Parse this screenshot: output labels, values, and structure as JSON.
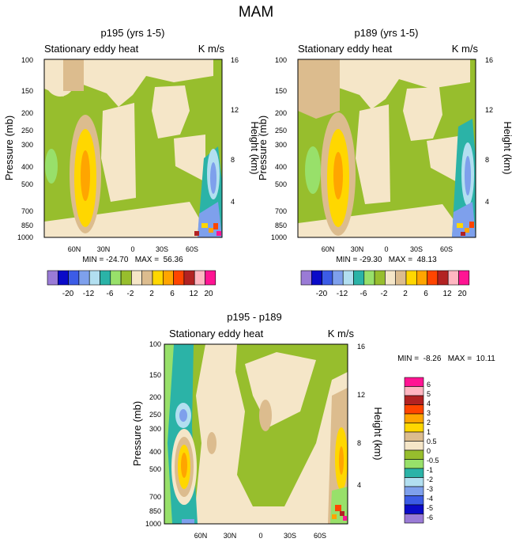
{
  "page_title": "MAM",
  "colors": {
    "levels": [
      "#9a7bd6",
      "#0a0ac8",
      "#3c5ce6",
      "#7ea0ec",
      "#b2dff0",
      "#2bb3a7",
      "#98e06a",
      "#97be2d",
      "#f5e6c8",
      "#dcbc8e",
      "#ffd700",
      "#ffa500",
      "#ff4500",
      "#b22222",
      "#ffb6c1",
      "#ff1493"
    ]
  },
  "chart_data": [
    {
      "type": "heatmap",
      "title": "p195 (yrs 1-5)",
      "left_title": "Stationary eddy heat",
      "units": "K m/s",
      "ylabel": "Pressure (mb)",
      "ylabel_right": "Height (km)",
      "y_ticks": [
        "100",
        "150",
        "200",
        "250",
        "300",
        "400",
        "500",
        "700",
        "850",
        "1000"
      ],
      "y_ticks_right": [
        "16",
        "12",
        "8",
        "4"
      ],
      "x_ticks": [
        "60N",
        "30N",
        "0",
        "30S",
        "60S"
      ],
      "stats": "MIN = -24.70   MAX =  56.36",
      "min": -24.7,
      "max": 56.36,
      "colorbar_labels": [
        "-20",
        "-12",
        "-6",
        "-2",
        "2",
        "6",
        "12",
        "20"
      ]
    },
    {
      "type": "heatmap",
      "title": "p189 (yrs 1-5)",
      "left_title": "Stationary eddy heat",
      "units": "K m/s",
      "ylabel": "Pressure (mb)",
      "ylabel_right": "Height (km)",
      "y_ticks": [
        "100",
        "150",
        "200",
        "250",
        "300",
        "400",
        "500",
        "700",
        "850",
        "1000"
      ],
      "y_ticks_right": [
        "16",
        "12",
        "8",
        "4"
      ],
      "x_ticks": [
        "60N",
        "30N",
        "0",
        "30S",
        "60S"
      ],
      "stats": "MIN = -29.30   MAX =  48.13",
      "min": -29.3,
      "max": 48.13,
      "colorbar_labels": [
        "-20",
        "-12",
        "-6",
        "-2",
        "2",
        "6",
        "12",
        "20"
      ]
    },
    {
      "type": "heatmap",
      "title": "p195 - p189",
      "left_title": "Stationary eddy heat",
      "units": "K m/s",
      "ylabel": "Pressure (mb)",
      "ylabel_right": "Height (km)",
      "y_ticks": [
        "100",
        "150",
        "200",
        "250",
        "300",
        "400",
        "500",
        "700",
        "850",
        "1000"
      ],
      "y_ticks_right": [
        "16",
        "12",
        "8",
        "4"
      ],
      "x_ticks": [
        "60N",
        "30N",
        "0",
        "30S",
        "60S"
      ],
      "stats": "MIN =  -8.26   MAX =  10.11",
      "min": -8.26,
      "max": 10.11,
      "colorbar_labels": [
        "6",
        "5",
        "4",
        "3",
        "2",
        "1",
        "0.5",
        "0",
        "-0.5",
        "-1",
        "-2",
        "-3",
        "-4",
        "-5",
        "-6"
      ]
    }
  ]
}
